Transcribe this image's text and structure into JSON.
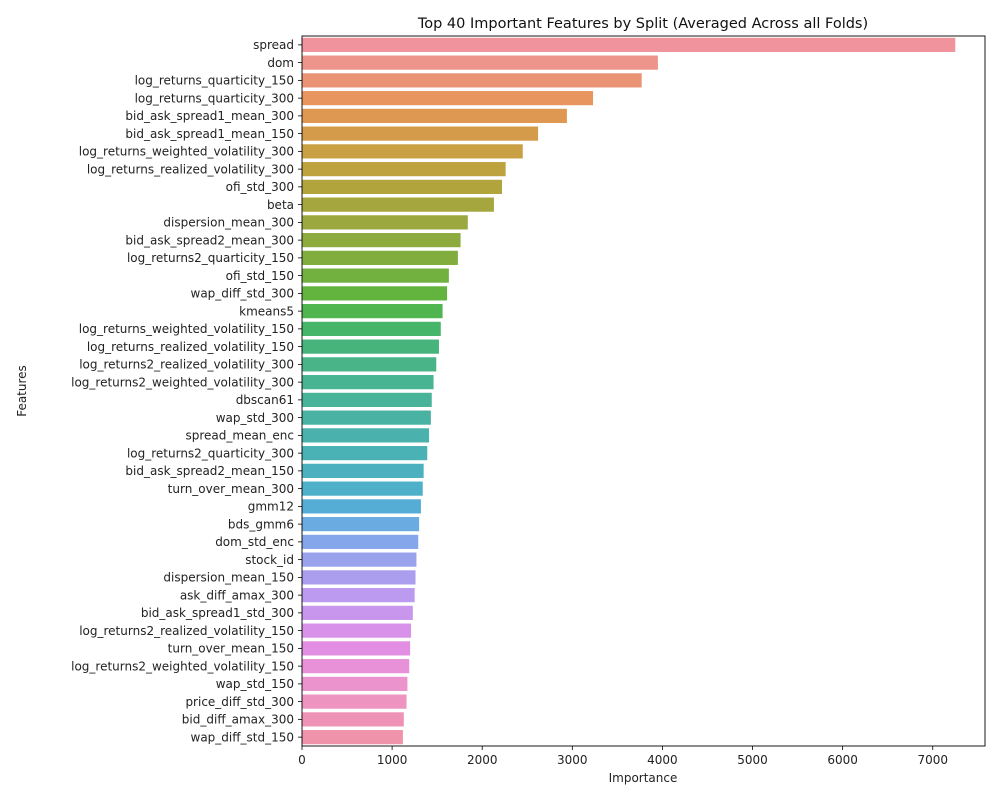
{
  "chart_data": {
    "type": "bar",
    "orientation": "horizontal",
    "title": "Top 40 Important Features by Split (Averaged Across all Folds)",
    "xlabel": "Importance",
    "ylabel": "Features",
    "xlim": [
      0,
      7580
    ],
    "xticks": [
      0,
      1000,
      2000,
      3000,
      4000,
      5000,
      6000,
      7000
    ],
    "xtick_labels": [
      "0",
      "1000",
      "2000",
      "3000",
      "4000",
      "5000",
      "6000",
      "7000"
    ],
    "grid": false,
    "legend": "none",
    "categories": [
      "spread",
      "dom",
      "log_returns_quarticity_150",
      "log_returns_quarticity_300",
      "bid_ask_spread1_mean_300",
      "bid_ask_spread1_mean_150",
      "log_returns_weighted_volatility_300",
      "log_returns_realized_volatility_300",
      "ofi_std_300",
      "beta",
      "dispersion_mean_300",
      "bid_ask_spread2_mean_300",
      "log_returns2_quarticity_150",
      "ofi_std_150",
      "wap_diff_std_300",
      "kmeans5",
      "log_returns_weighted_volatility_150",
      "log_returns_realized_volatility_150",
      "log_returns2_realized_volatility_300",
      "log_returns2_weighted_volatility_300",
      "dbscan61",
      "wap_std_300",
      "spread_mean_enc",
      "log_returns2_quarticity_300",
      "bid_ask_spread2_mean_150",
      "turn_over_mean_300",
      "gmm12",
      "bds_gmm6",
      "dom_std_enc",
      "stock_id",
      "dispersion_mean_150",
      "ask_diff_amax_300",
      "bid_ask_spread1_std_300",
      "log_returns2_realized_volatility_150",
      "turn_over_mean_150",
      "log_returns2_weighted_volatility_150",
      "wap_std_150",
      "price_diff_std_300",
      "bid_diff_amax_300",
      "wap_diff_std_150"
    ],
    "values": [
      7250,
      3950,
      3770,
      3230,
      2940,
      2620,
      2450,
      2260,
      2220,
      2130,
      1840,
      1760,
      1730,
      1630,
      1610,
      1560,
      1540,
      1520,
      1490,
      1460,
      1440,
      1430,
      1410,
      1390,
      1350,
      1340,
      1320,
      1300,
      1290,
      1270,
      1260,
      1250,
      1230,
      1210,
      1200,
      1190,
      1170,
      1160,
      1130,
      1120
    ],
    "colors": [
      "#f0939c",
      "#ed958a",
      "#eb9375",
      "#e99560",
      "#df9852",
      "#d49c4a",
      "#c9a044",
      "#bea23e",
      "#b1a43c",
      "#a6a63e",
      "#9ba73f",
      "#8daa3f",
      "#80ad3e",
      "#72b13f",
      "#63b43f",
      "#4eb54f",
      "#45b56a",
      "#47b47b",
      "#48b487",
      "#48b491",
      "#49b39a",
      "#4ab2a3",
      "#4ab1ac",
      "#4ab1b5",
      "#4cb0bf",
      "#4fb0c9",
      "#55add5",
      "#6aabe2",
      "#85a6ea",
      "#9aa2ec",
      "#ac9eee",
      "#bb9aef",
      "#c996ee",
      "#d892ea",
      "#e28fe3",
      "#e891d8",
      "#eb93cc",
      "#ed94c1",
      "#ee93b6",
      "#ef93ab"
    ]
  }
}
